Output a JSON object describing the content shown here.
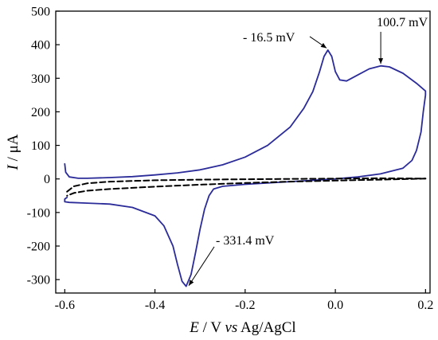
{
  "chart_data": {
    "type": "line",
    "xlabel": {
      "italic_symbol": "E",
      "rest": " / V ",
      "italic_vs": "vs",
      "ref": " Ag/AgCl"
    },
    "ylabel": {
      "italic_symbol": "I",
      "rest": " / μA"
    },
    "xlim": [
      -0.62,
      0.21
    ],
    "ylim": [
      -340,
      500
    ],
    "x_ticks": [
      -0.6,
      -0.4,
      -0.2,
      0.0,
      0.2
    ],
    "x_tick_labels": [
      "-0.6",
      "-0.4",
      "-0.2",
      "0.0",
      "0.2"
    ],
    "y_ticks": [
      -300,
      -200,
      -100,
      0,
      100,
      200,
      300,
      400,
      500
    ],
    "y_tick_labels": [
      "-300",
      "-200",
      "-100",
      "0",
      "100",
      "200",
      "300",
      "400",
      "500"
    ],
    "grid": false,
    "series": [
      {
        "style": "solid",
        "color": "#2b2b9a",
        "points": [
          [
            -0.6,
            45
          ],
          [
            -0.598,
            20
          ],
          [
            -0.59,
            6
          ],
          [
            -0.57,
            2
          ],
          [
            -0.55,
            2
          ],
          [
            -0.5,
            4
          ],
          [
            -0.45,
            7
          ],
          [
            -0.4,
            12
          ],
          [
            -0.35,
            18
          ],
          [
            -0.3,
            27
          ],
          [
            -0.25,
            42
          ],
          [
            -0.2,
            65
          ],
          [
            -0.15,
            100
          ],
          [
            -0.1,
            155
          ],
          [
            -0.07,
            210
          ],
          [
            -0.05,
            260
          ],
          [
            -0.035,
            320
          ],
          [
            -0.025,
            365
          ],
          [
            -0.0165,
            384
          ],
          [
            -0.008,
            365
          ],
          [
            0.0,
            320
          ],
          [
            0.01,
            295
          ],
          [
            0.025,
            292
          ],
          [
            0.05,
            310
          ],
          [
            0.075,
            328
          ],
          [
            0.1007,
            337
          ],
          [
            0.12,
            334
          ],
          [
            0.15,
            315
          ],
          [
            0.18,
            285
          ],
          [
            0.2,
            262
          ],
          [
            0.2,
            250
          ],
          [
            0.195,
            200
          ],
          [
            0.19,
            140
          ],
          [
            0.18,
            85
          ],
          [
            0.17,
            55
          ],
          [
            0.15,
            32
          ],
          [
            0.1,
            15
          ],
          [
            0.05,
            6
          ],
          [
            0.0,
            0
          ],
          [
            -0.1,
            -8
          ],
          [
            -0.2,
            -16
          ],
          [
            -0.25,
            -22
          ],
          [
            -0.27,
            -30
          ],
          [
            -0.28,
            -50
          ],
          [
            -0.29,
            -90
          ],
          [
            -0.3,
            -150
          ],
          [
            -0.31,
            -220
          ],
          [
            -0.32,
            -285
          ],
          [
            -0.331,
            -320
          ],
          [
            -0.34,
            -305
          ],
          [
            -0.35,
            -255
          ],
          [
            -0.36,
            -200
          ],
          [
            -0.38,
            -140
          ],
          [
            -0.4,
            -110
          ],
          [
            -0.45,
            -85
          ],
          [
            -0.5,
            -75
          ],
          [
            -0.55,
            -72
          ],
          [
            -0.59,
            -70
          ],
          [
            -0.6,
            -68
          ],
          [
            -0.6,
            -60
          ],
          [
            -0.595,
            -55
          ]
        ]
      },
      {
        "style": "dashed",
        "color": "#000000",
        "points": [
          [
            -0.595,
            -38
          ],
          [
            -0.58,
            -22
          ],
          [
            -0.55,
            -13
          ],
          [
            -0.5,
            -8
          ],
          [
            -0.4,
            -4
          ],
          [
            -0.3,
            -2
          ],
          [
            -0.2,
            -1
          ],
          [
            -0.1,
            0
          ],
          [
            0.0,
            1
          ],
          [
            0.1,
            2
          ],
          [
            0.2,
            1
          ]
        ]
      },
      {
        "style": "dashed",
        "color": "#000000",
        "points": [
          [
            0.2,
            1
          ],
          [
            0.1,
            -2
          ],
          [
            0.0,
            -5
          ],
          [
            -0.1,
            -8
          ],
          [
            -0.2,
            -12
          ],
          [
            -0.3,
            -17
          ],
          [
            -0.4,
            -23
          ],
          [
            -0.5,
            -30
          ],
          [
            -0.55,
            -35
          ],
          [
            -0.58,
            -42
          ],
          [
            -0.595,
            -50
          ]
        ]
      }
    ],
    "annotations": [
      {
        "text": "- 16.5 mV",
        "label_x": -0.205,
        "label_y": 410,
        "target_x": -0.0195,
        "target_y": 390
      },
      {
        "text": "100.7 mV",
        "label_x": 0.092,
        "label_y": 455,
        "target_x": 0.1007,
        "target_y": 343
      },
      {
        "text": "- 331.4 mV",
        "label_x": -0.265,
        "label_y": -195,
        "target_x": -0.325,
        "target_y": -318
      }
    ]
  }
}
